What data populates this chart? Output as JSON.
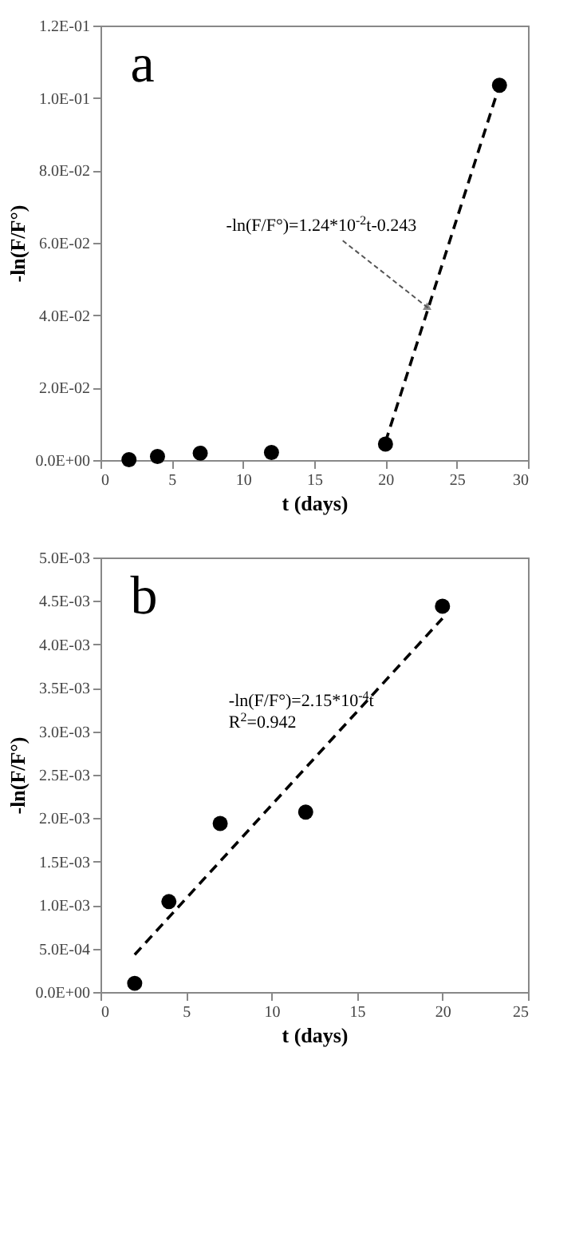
{
  "chart_data": [
    {
      "type": "scatter",
      "title": "a",
      "xlabel": "t (days)",
      "ylabel": "-ln(F/F°)",
      "marker": "circle",
      "grid": false,
      "xlim": [
        0,
        30
      ],
      "xticks": [
        0,
        5,
        10,
        15,
        20,
        25,
        30
      ],
      "ylim": [
        0,
        0.12
      ],
      "yticks": [
        {
          "value": 0,
          "label": "0.0E+00"
        },
        {
          "value": 0.02,
          "label": "2.0E-02"
        },
        {
          "value": 0.04,
          "label": "4.0E-02"
        },
        {
          "value": 0.06,
          "label": "6.0E-02"
        },
        {
          "value": 0.08,
          "label": "8.0E-02"
        },
        {
          "value": 0.1,
          "label": "1.0E-01"
        },
        {
          "value": 0.12,
          "label": "1.2E-01"
        }
      ],
      "x": [
        2,
        4,
        7,
        12,
        20,
        28
      ],
      "series": [
        {
          "color": "#000000",
          "values": [
            0.0001,
            0.001,
            0.0019,
            0.0021,
            0.0044,
            0.1035
          ]
        },
        {
          "type": "line",
          "color": "#000000",
          "line_style": "dashed",
          "marker": "none",
          "x": [
            20,
            28
          ],
          "values": [
            0.005,
            0.1035
          ]
        }
      ],
      "annotations": [
        {
          "text": "-ln(F/F°)=1.24*10$^{-2}$t-0.243",
          "x": 23,
          "y": 0.042
        }
      ]
    },
    {
      "type": "scatter",
      "title": "b",
      "xlabel": "t (days)",
      "ylabel": "-ln(F/F°)",
      "marker": "circle",
      "grid": false,
      "xlim": [
        0,
        25
      ],
      "xticks": [
        0,
        5,
        10,
        15,
        20,
        25
      ],
      "ylim": [
        0,
        0.005
      ],
      "yticks": [
        {
          "value": 0,
          "label": "0.0E+00"
        },
        {
          "value": 0.0005,
          "label": "5.0E-04"
        },
        {
          "value": 0.001,
          "label": "1.0E-03"
        },
        {
          "value": 0.0015,
          "label": "1.5E-03"
        },
        {
          "value": 0.002,
          "label": "2.0E-03"
        },
        {
          "value": 0.0025,
          "label": "2.5E-03"
        },
        {
          "value": 0.003,
          "label": "3.0E-03"
        },
        {
          "value": 0.0035,
          "label": "3.5E-03"
        },
        {
          "value": 0.004,
          "label": "4.0E-03"
        },
        {
          "value": 0.0045,
          "label": "4.5E-03"
        },
        {
          "value": 0.005,
          "label": "5.0E-03"
        }
      ],
      "x": [
        2,
        4,
        7,
        12,
        20
      ],
      "series": [
        {
          "color": "#000000",
          "values": [
            0.0001,
            0.00104,
            0.00194,
            0.00207,
            0.00444
          ]
        },
        {
          "type": "line",
          "color": "#000000",
          "line_style": "dashed",
          "marker": "none",
          "x": [
            2,
            20
          ],
          "values": [
            0.00043,
            0.0043
          ]
        }
      ],
      "annotations": [
        "-ln(F/F°)=2.15*10$^{-4}$t",
        "R$^{2}$=0.942"
      ]
    }
  ]
}
